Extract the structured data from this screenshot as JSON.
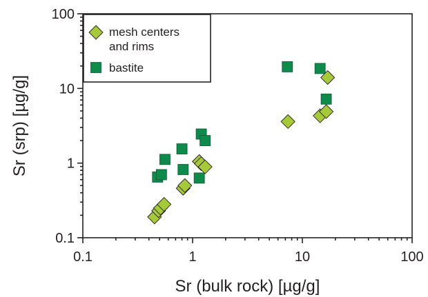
{
  "chart_data": {
    "type": "scatter",
    "xlabel": "Sr (bulk rock) [µg/g]",
    "ylabel": "Sr (srp) [µg/g]",
    "xscale": "log",
    "yscale": "log",
    "xlim": [
      0.1,
      100
    ],
    "ylim": [
      0.1,
      100
    ],
    "x_ticks": [
      0.1,
      1,
      10,
      100
    ],
    "y_ticks": [
      0.1,
      1,
      10,
      100
    ],
    "x_tick_labels": [
      "0.1",
      "1",
      "10",
      "100"
    ],
    "y_tick_labels": [
      "0.1",
      "1",
      "10",
      "100"
    ],
    "grid": false,
    "legend_position": "top-left",
    "series": [
      {
        "name": "mesh centers and rims",
        "legend_lines": [
          "mesh centers",
          "and rims"
        ],
        "marker": "diamond",
        "color": "#a6c93a",
        "points": [
          [
            0.45,
            0.19
          ],
          [
            0.49,
            0.23
          ],
          [
            0.51,
            0.25
          ],
          [
            0.55,
            0.28
          ],
          [
            0.82,
            0.46
          ],
          [
            0.85,
            0.5
          ],
          [
            1.15,
            1.05
          ],
          [
            1.2,
            0.98
          ],
          [
            1.3,
            0.89
          ],
          [
            7.4,
            3.6
          ],
          [
            14.5,
            4.3
          ],
          [
            16.5,
            4.9
          ],
          [
            17.0,
            14.0
          ]
        ]
      },
      {
        "name": "bastite",
        "legend_lines": [
          "bastite"
        ],
        "marker": "square",
        "color": "#0e8a4b",
        "points": [
          [
            0.48,
            0.65
          ],
          [
            0.52,
            0.7
          ],
          [
            0.56,
            1.12
          ],
          [
            0.8,
            1.55
          ],
          [
            0.82,
            0.82
          ],
          [
            1.15,
            0.63
          ],
          [
            1.2,
            2.45
          ],
          [
            1.3,
            2.0
          ],
          [
            7.3,
            19.5
          ],
          [
            14.5,
            18.5
          ],
          [
            16.5,
            7.2
          ]
        ]
      }
    ]
  }
}
